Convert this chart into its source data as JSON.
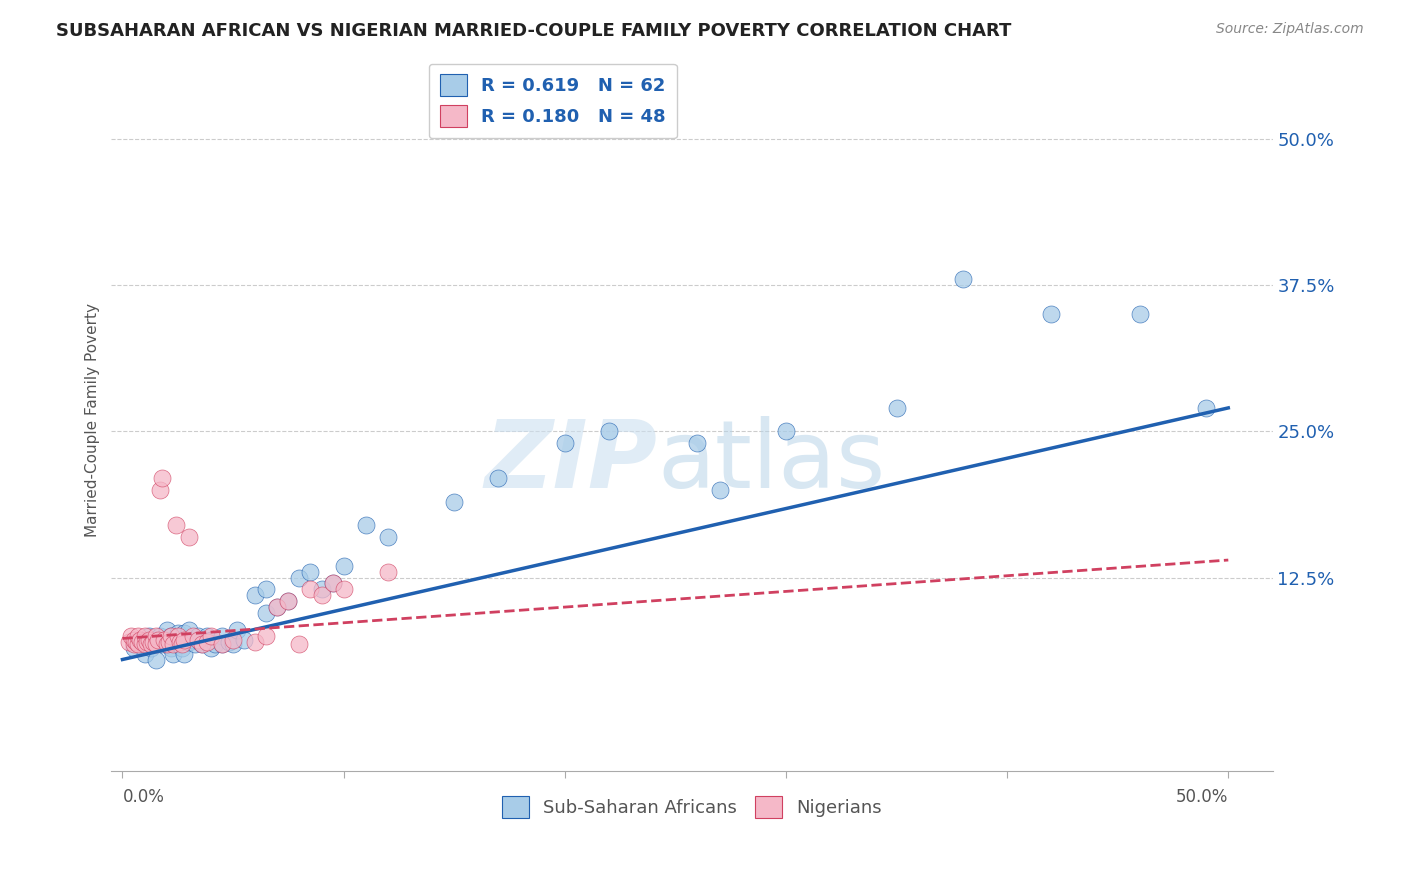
{
  "title": "SUBSAHARAN AFRICAN VS NIGERIAN MARRIED-COUPLE FAMILY POVERTY CORRELATION CHART",
  "source": "Source: ZipAtlas.com",
  "ylabel": "Married-Couple Family Poverty",
  "ytick_values": [
    0.125,
    0.25,
    0.375,
    0.5
  ],
  "ytick_labels": [
    "12.5%",
    "25.0%",
    "37.5%",
    "50.0%"
  ],
  "xlim": [
    -0.005,
    0.52
  ],
  "ylim": [
    -0.04,
    0.56
  ],
  "legend_line1": "R = 0.619   N = 62",
  "legend_line2": "R = 0.180   N = 48",
  "color_blue": "#a8cce8",
  "color_pink": "#f5b8c8",
  "line_blue": "#2060b0",
  "line_pink": "#d04060",
  "blue_scatter_x": [
    0.005,
    0.008,
    0.01,
    0.012,
    0.013,
    0.015,
    0.015,
    0.017,
    0.018,
    0.019,
    0.02,
    0.02,
    0.022,
    0.022,
    0.023,
    0.025,
    0.025,
    0.026,
    0.027,
    0.028,
    0.028,
    0.03,
    0.03,
    0.032,
    0.033,
    0.034,
    0.035,
    0.036,
    0.038,
    0.04,
    0.04,
    0.042,
    0.045,
    0.045,
    0.048,
    0.05,
    0.052,
    0.055,
    0.06,
    0.065,
    0.065,
    0.07,
    0.075,
    0.08,
    0.085,
    0.09,
    0.095,
    0.1,
    0.11,
    0.12,
    0.15,
    0.17,
    0.2,
    0.22,
    0.26,
    0.27,
    0.3,
    0.35,
    0.38,
    0.42,
    0.46,
    0.49
  ],
  "blue_scatter_y": [
    0.065,
    0.07,
    0.06,
    0.075,
    0.065,
    0.07,
    0.055,
    0.075,
    0.068,
    0.072,
    0.068,
    0.08,
    0.065,
    0.075,
    0.06,
    0.068,
    0.078,
    0.072,
    0.065,
    0.078,
    0.06,
    0.07,
    0.08,
    0.072,
    0.068,
    0.075,
    0.07,
    0.068,
    0.075,
    0.072,
    0.065,
    0.068,
    0.075,
    0.068,
    0.07,
    0.068,
    0.08,
    0.072,
    0.11,
    0.095,
    0.115,
    0.1,
    0.105,
    0.125,
    0.13,
    0.115,
    0.12,
    0.135,
    0.17,
    0.16,
    0.19,
    0.21,
    0.24,
    0.25,
    0.24,
    0.2,
    0.25,
    0.27,
    0.38,
    0.35,
    0.35,
    0.27
  ],
  "pink_scatter_x": [
    0.003,
    0.004,
    0.005,
    0.005,
    0.006,
    0.007,
    0.007,
    0.008,
    0.009,
    0.01,
    0.01,
    0.011,
    0.012,
    0.013,
    0.014,
    0.015,
    0.015,
    0.016,
    0.017,
    0.018,
    0.019,
    0.02,
    0.021,
    0.022,
    0.023,
    0.024,
    0.025,
    0.026,
    0.027,
    0.028,
    0.03,
    0.032,
    0.034,
    0.036,
    0.038,
    0.04,
    0.045,
    0.05,
    0.06,
    0.065,
    0.07,
    0.075,
    0.08,
    0.085,
    0.09,
    0.095,
    0.1,
    0.12
  ],
  "pink_scatter_y": [
    0.07,
    0.075,
    0.068,
    0.072,
    0.07,
    0.068,
    0.075,
    0.072,
    0.07,
    0.068,
    0.075,
    0.07,
    0.072,
    0.068,
    0.07,
    0.075,
    0.068,
    0.072,
    0.2,
    0.21,
    0.072,
    0.068,
    0.07,
    0.075,
    0.068,
    0.17,
    0.075,
    0.07,
    0.068,
    0.072,
    0.16,
    0.075,
    0.072,
    0.068,
    0.07,
    0.075,
    0.068,
    0.072,
    0.07,
    0.075,
    0.1,
    0.105,
    0.068,
    0.115,
    0.11,
    0.12,
    0.115,
    0.13
  ],
  "blue_line_x": [
    0.0,
    0.5
  ],
  "blue_line_y": [
    0.055,
    0.27
  ],
  "pink_line_x": [
    0.0,
    0.5
  ],
  "pink_line_y": [
    0.073,
    0.14
  ],
  "background_color": "#ffffff",
  "grid_color": "#cccccc",
  "xtick_positions": [
    0.0,
    0.1,
    0.2,
    0.3,
    0.4,
    0.5
  ]
}
